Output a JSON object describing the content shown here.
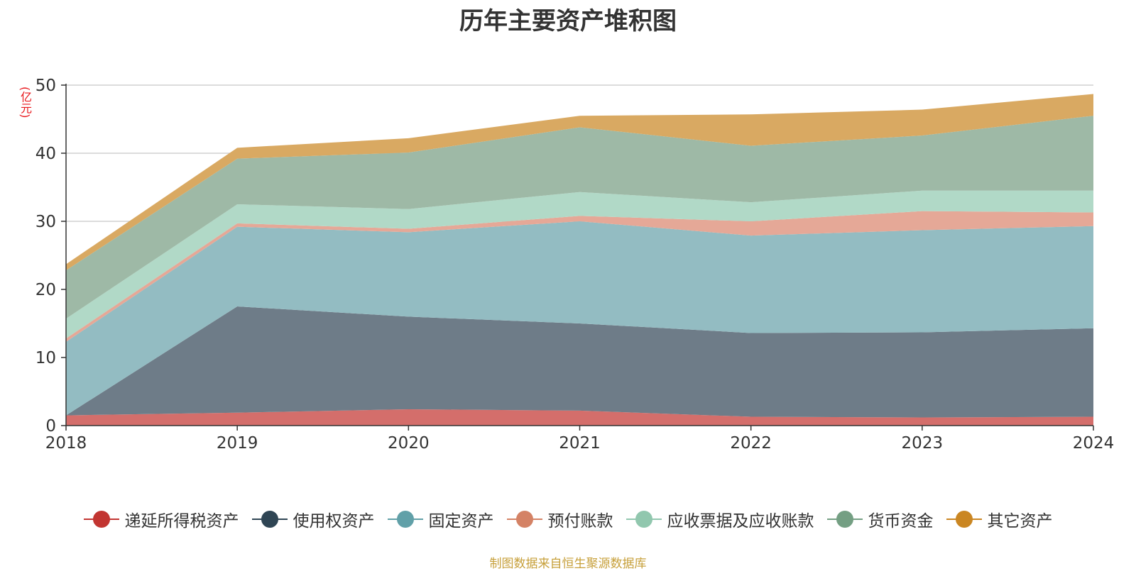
{
  "title": "历年主要资产堆积图",
  "unit_label": "(亿元)",
  "source": "制图数据来自恒生聚源数据库",
  "chart_data": {
    "type": "area",
    "stacked": true,
    "title": "历年主要资产堆积图",
    "ylabel": "(亿元)",
    "ylim": [
      0,
      50
    ],
    "yticks": [
      0,
      10,
      20,
      30,
      40,
      50
    ],
    "grid": true,
    "legend_position": "bottom",
    "categories": [
      "2018",
      "2019",
      "2020",
      "2021",
      "2022",
      "2023",
      "2024"
    ],
    "series": [
      {
        "name": "递延所得税资产",
        "color": "#c23531",
        "fill": "#d46e6b",
        "values": [
          1.5,
          1.9,
          2.4,
          2.2,
          1.3,
          1.2,
          1.3
        ]
      },
      {
        "name": "使用权资产",
        "color": "#2f4554",
        "fill": "#6e7c88",
        "values": [
          0.0,
          15.6,
          13.6,
          12.8,
          12.3,
          12.5,
          13.0
        ]
      },
      {
        "name": "固定资产",
        "color": "#61a0a8",
        "fill": "#93bcc2",
        "values": [
          10.8,
          11.7,
          12.4,
          15.0,
          14.3,
          15.0,
          15.0
        ]
      },
      {
        "name": "预付账款",
        "color": "#d48265",
        "fill": "#e5a897",
        "values": [
          0.5,
          0.5,
          0.5,
          0.8,
          2.1,
          2.8,
          2.0
        ]
      },
      {
        "name": "应收票据及应收账款",
        "color": "#91c7ae",
        "fill": "#b1d9c7",
        "values": [
          2.9,
          2.8,
          2.9,
          3.5,
          2.8,
          3.0,
          3.2
        ]
      },
      {
        "name": "货币资金",
        "color": "#749f83",
        "fill": "#9eb9a6",
        "values": [
          7.1,
          6.7,
          8.3,
          9.5,
          8.3,
          8.1,
          11.0
        ]
      },
      {
        "name": "其它资产",
        "color": "#ca8622",
        "fill": "#d9a962",
        "values": [
          0.9,
          1.6,
          2.1,
          1.7,
          4.6,
          3.8,
          3.2
        ]
      }
    ]
  }
}
